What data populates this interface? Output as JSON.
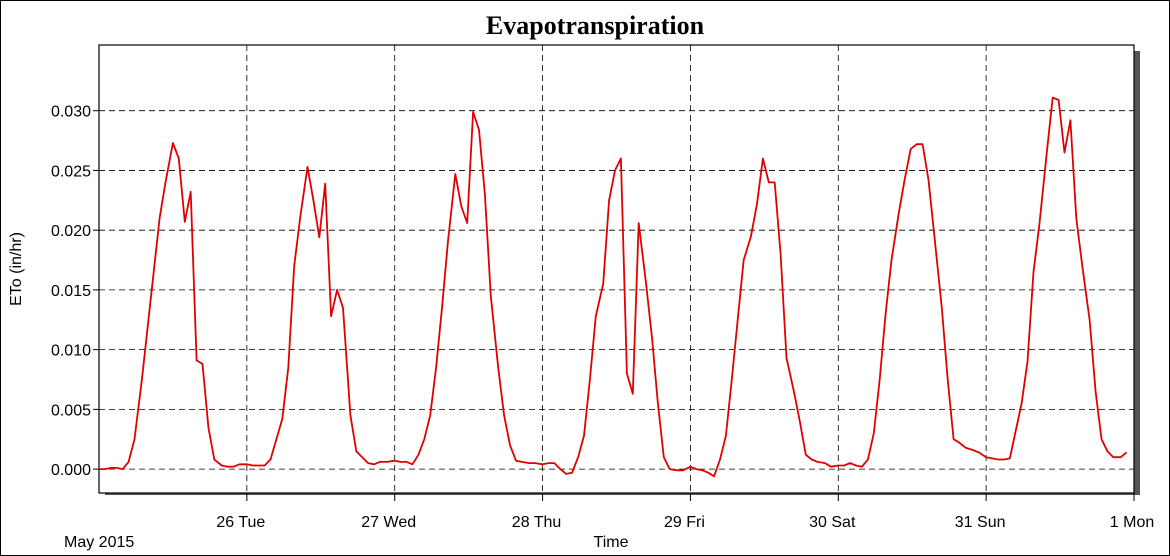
{
  "chart_data": {
    "type": "line",
    "title": "Evapotranspiration",
    "ylabel": "ETo (in/hr)",
    "xlabel": "Time",
    "date_caption": "May 2015",
    "ylim": [
      -0.002,
      0.0355
    ],
    "xlim": [
      0,
      7
    ],
    "grid": true,
    "x_ticks": [
      {
        "pos": 1,
        "label": "26 Tue"
      },
      {
        "pos": 2,
        "label": "27 Wed"
      },
      {
        "pos": 3,
        "label": "28 Thu"
      },
      {
        "pos": 4,
        "label": "29 Fri"
      },
      {
        "pos": 5,
        "label": "30 Sat"
      },
      {
        "pos": 6,
        "label": "31 Sun"
      },
      {
        "pos": 7,
        "label": "1 Mon"
      }
    ],
    "y_ticks": [
      {
        "value": 0.0,
        "label": "0.000"
      },
      {
        "value": 0.005,
        "label": "0.005"
      },
      {
        "value": 0.01,
        "label": "0.010"
      },
      {
        "value": 0.015,
        "label": "0.015"
      },
      {
        "value": 0.02,
        "label": "0.020"
      },
      {
        "value": 0.025,
        "label": "0.025"
      },
      {
        "value": 0.03,
        "label": "0.030"
      }
    ],
    "series": [
      {
        "color": "#e00000",
        "points": [
          [
            0.0,
            0.0
          ],
          [
            0.04,
            0.0
          ],
          [
            0.08,
            0.0001
          ],
          [
            0.12,
            0.0001
          ],
          [
            0.16,
            0.0
          ],
          [
            0.2,
            0.0006
          ],
          [
            0.24,
            0.0025
          ],
          [
            0.29,
            0.0075
          ],
          [
            0.33,
            0.012
          ],
          [
            0.37,
            0.0165
          ],
          [
            0.41,
            0.021
          ],
          [
            0.45,
            0.024
          ],
          [
            0.5,
            0.0273
          ],
          [
            0.54,
            0.026
          ],
          [
            0.58,
            0.0207
          ],
          [
            0.62,
            0.0232
          ],
          [
            0.66,
            0.0091
          ],
          [
            0.7,
            0.0088
          ],
          [
            0.74,
            0.0035
          ],
          [
            0.78,
            0.0008
          ],
          [
            0.83,
            0.0003
          ],
          [
            0.87,
            0.0002
          ],
          [
            0.91,
            0.0002
          ],
          [
            0.95,
            0.0004
          ],
          [
            1.0,
            0.0004
          ],
          [
            1.04,
            0.0003
          ],
          [
            1.08,
            0.0003
          ],
          [
            1.12,
            0.0003
          ],
          [
            1.16,
            0.0008
          ],
          [
            1.2,
            0.0025
          ],
          [
            1.24,
            0.0042
          ],
          [
            1.28,
            0.0085
          ],
          [
            1.32,
            0.017
          ],
          [
            1.36,
            0.021
          ],
          [
            1.41,
            0.0253
          ],
          [
            1.45,
            0.0225
          ],
          [
            1.49,
            0.0194
          ],
          [
            1.53,
            0.0239
          ],
          [
            1.57,
            0.0128
          ],
          [
            1.61,
            0.015
          ],
          [
            1.65,
            0.0135
          ],
          [
            1.7,
            0.0045
          ],
          [
            1.74,
            0.0015
          ],
          [
            1.78,
            0.001
          ],
          [
            1.82,
            0.0005
          ],
          [
            1.86,
            0.0004
          ],
          [
            1.9,
            0.0006
          ],
          [
            1.95,
            0.0006
          ],
          [
            2.0,
            0.0007
          ],
          [
            2.04,
            0.0006
          ],
          [
            2.08,
            0.0006
          ],
          [
            2.12,
            0.0004
          ],
          [
            2.16,
            0.0012
          ],
          [
            2.2,
            0.0025
          ],
          [
            2.24,
            0.0045
          ],
          [
            2.28,
            0.0085
          ],
          [
            2.32,
            0.0135
          ],
          [
            2.36,
            0.019
          ],
          [
            2.41,
            0.0247
          ],
          [
            2.45,
            0.022
          ],
          [
            2.49,
            0.0206
          ],
          [
            2.53,
            0.0299
          ],
          [
            2.57,
            0.0284
          ],
          [
            2.61,
            0.023
          ],
          [
            2.65,
            0.0145
          ],
          [
            2.7,
            0.0085
          ],
          [
            2.74,
            0.0045
          ],
          [
            2.78,
            0.002
          ],
          [
            2.82,
            0.0007
          ],
          [
            2.86,
            0.0006
          ],
          [
            2.91,
            0.0005
          ],
          [
            2.95,
            0.0005
          ],
          [
            3.0,
            0.0004
          ],
          [
            3.04,
            0.0005
          ],
          [
            3.08,
            0.0005
          ],
          [
            3.12,
            0.0
          ],
          [
            3.16,
            -0.0004
          ],
          [
            3.2,
            -0.0003
          ],
          [
            3.24,
            0.001
          ],
          [
            3.28,
            0.0028
          ],
          [
            3.32,
            0.0075
          ],
          [
            3.36,
            0.0128
          ],
          [
            3.41,
            0.0155
          ],
          [
            3.45,
            0.0225
          ],
          [
            3.49,
            0.025
          ],
          [
            3.53,
            0.026
          ],
          [
            3.57,
            0.008
          ],
          [
            3.61,
            0.0063
          ],
          [
            3.65,
            0.0206
          ],
          [
            3.7,
            0.0155
          ],
          [
            3.74,
            0.011
          ],
          [
            3.78,
            0.0055
          ],
          [
            3.82,
            0.001
          ],
          [
            3.86,
            0.0
          ],
          [
            3.91,
            -0.0001
          ],
          [
            3.95,
            -0.0001
          ],
          [
            4.0,
            0.0002
          ],
          [
            4.04,
            0.0
          ],
          [
            4.08,
            -0.0001
          ],
          [
            4.12,
            -0.0003
          ],
          [
            4.16,
            -0.0006
          ],
          [
            4.2,
            0.0008
          ],
          [
            4.24,
            0.0028
          ],
          [
            4.28,
            0.0075
          ],
          [
            4.32,
            0.0125
          ],
          [
            4.36,
            0.0175
          ],
          [
            4.41,
            0.0195
          ],
          [
            4.45,
            0.0222
          ],
          [
            4.49,
            0.026
          ],
          [
            4.53,
            0.024
          ],
          [
            4.57,
            0.024
          ],
          [
            4.61,
            0.018
          ],
          [
            4.65,
            0.0093
          ],
          [
            4.7,
            0.0065
          ],
          [
            4.74,
            0.004
          ],
          [
            4.78,
            0.0012
          ],
          [
            4.82,
            0.0008
          ],
          [
            4.86,
            0.0006
          ],
          [
            4.91,
            0.0005
          ],
          [
            4.95,
            0.0002
          ],
          [
            5.0,
            0.0003
          ],
          [
            5.04,
            0.0003
          ],
          [
            5.08,
            0.0005
          ],
          [
            5.12,
            0.0003
          ],
          [
            5.16,
            0.0002
          ],
          [
            5.2,
            0.0008
          ],
          [
            5.24,
            0.003
          ],
          [
            5.28,
            0.0075
          ],
          [
            5.32,
            0.013
          ],
          [
            5.36,
            0.0175
          ],
          [
            5.41,
            0.0215
          ],
          [
            5.45,
            0.0243
          ],
          [
            5.49,
            0.0268
          ],
          [
            5.53,
            0.0272
          ],
          [
            5.57,
            0.0272
          ],
          [
            5.61,
            0.0242
          ],
          [
            5.65,
            0.0195
          ],
          [
            5.7,
            0.0135
          ],
          [
            5.74,
            0.0075
          ],
          [
            5.78,
            0.0025
          ],
          [
            5.82,
            0.0022
          ],
          [
            5.86,
            0.0018
          ],
          [
            5.91,
            0.0016
          ],
          [
            5.95,
            0.0014
          ],
          [
            6.0,
            0.001
          ],
          [
            6.04,
            0.0009
          ],
          [
            6.08,
            0.0008
          ],
          [
            6.12,
            0.0008
          ],
          [
            6.16,
            0.0009
          ],
          [
            6.2,
            0.0032
          ],
          [
            6.24,
            0.0055
          ],
          [
            6.28,
            0.009
          ],
          [
            6.32,
            0.0165
          ],
          [
            6.36,
            0.0205
          ],
          [
            6.41,
            0.0265
          ],
          [
            6.45,
            0.0311
          ],
          [
            6.49,
            0.0309
          ],
          [
            6.53,
            0.0265
          ],
          [
            6.57,
            0.0292
          ],
          [
            6.61,
            0.021
          ],
          [
            6.65,
            0.017
          ],
          [
            6.7,
            0.0125
          ],
          [
            6.74,
            0.0065
          ],
          [
            6.78,
            0.0025
          ],
          [
            6.82,
            0.0015
          ],
          [
            6.86,
            0.001
          ],
          [
            6.91,
            0.001
          ],
          [
            6.95,
            0.0014
          ]
        ]
      }
    ]
  }
}
